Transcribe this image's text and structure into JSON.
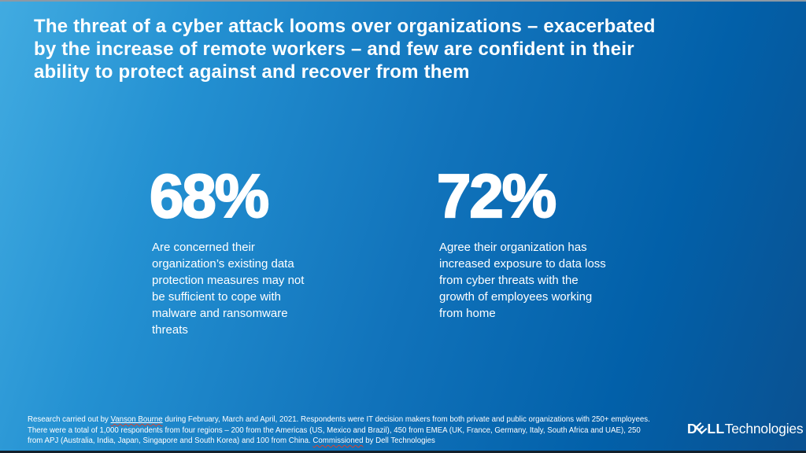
{
  "slide": {
    "headline": {
      "line1": "The threat of a cyber attack looms over organizations – exacerbated",
      "line2": "by the increase of remote workers – and few are confident in their",
      "line3": "ability to protect  against and recover from them"
    },
    "stats": [
      {
        "value": "68%",
        "description": "Are concerned their organization’s existing data protection measures may not be sufficient to cope with malware and ransomware threats",
        "desc_lines": [
          "Are concerned their",
          "organization’s existing data",
          "protection measures may not",
          "be sufficient to cope with",
          "malware and ransomware",
          "threats"
        ]
      },
      {
        "value": "72%",
        "description": "Agree their organization has increased exposure to data loss from cyber threats with the growth of employees working from home",
        "desc_lines": [
          "Agree their organization has",
          "increased exposure to data loss",
          "from cyber threats with the",
          "growth of employees working",
          "from home"
        ]
      }
    ],
    "footnote": {
      "line1_pre": "Research carried out by ",
      "line1_link": "Vanson Bourne",
      "line1_post": " during February, March and April, 2021. Respondents were IT decision makers from both private and  public organizations with 250+ employees.",
      "line2": "There were a total of 1,000 respondents from four regions – 200 from the Americas (US, Mexico  and Brazil), 450 from EMEA (UK, France, Germany, Italy, South Africa and UAE), 250",
      "line3_pre": "from APJ (Australia, India, Japan, Singapore and South  Korea) and 100 from China. ",
      "line3_misspelled": "Commissioned",
      "line3_post": " by Dell Technologies"
    },
    "logo": {
      "d": "D",
      "e": "E",
      "ll": "LL",
      "suffix": "Technologies"
    },
    "colors": {
      "background_gradient_start": "#41abe1",
      "background_gradient_mid": "#1173bb",
      "background_gradient_end": "#0a5191",
      "text": "#ffffff",
      "spellcheck_squiggle": "#d9422e",
      "top_border": "#8d99a4",
      "bottom_border": "#13202b"
    }
  }
}
